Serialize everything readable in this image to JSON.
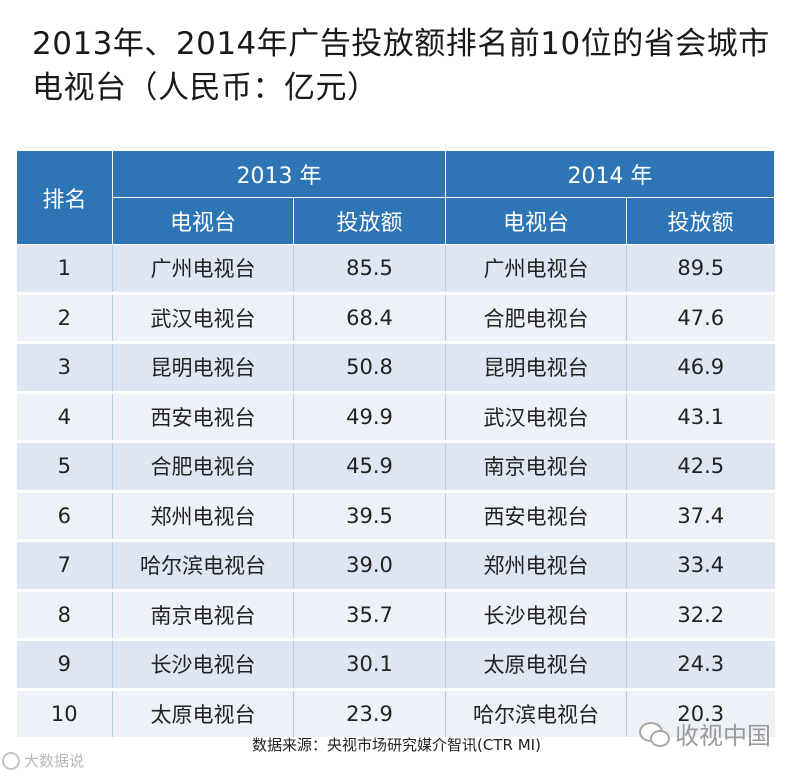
{
  "title": "2013年、2014年广告投放额排名前10位的省会城市电视台（人民币：亿元）",
  "table": {
    "rank_header": "排名",
    "year_headers": [
      "2013 年",
      "2014 年"
    ],
    "sub_headers": [
      "电视台",
      "投放额",
      "电视台",
      "投放额"
    ],
    "rows": [
      {
        "rank": "1",
        "s2013": "广州电视台",
        "v2013": "85.5",
        "s2014": "广州电视台",
        "v2014": "89.5"
      },
      {
        "rank": "2",
        "s2013": "武汉电视台",
        "v2013": "68.4",
        "s2014": "合肥电视台",
        "v2014": "47.6"
      },
      {
        "rank": "3",
        "s2013": "昆明电视台",
        "v2013": "50.8",
        "s2014": "昆明电视台",
        "v2014": "46.9"
      },
      {
        "rank": "4",
        "s2013": "西安电视台",
        "v2013": "49.9",
        "s2014": "武汉电视台",
        "v2014": "43.1"
      },
      {
        "rank": "5",
        "s2013": "合肥电视台",
        "v2013": "45.9",
        "s2014": "南京电视台",
        "v2014": "42.5"
      },
      {
        "rank": "6",
        "s2013": "郑州电视台",
        "v2013": "39.5",
        "s2014": "西安电视台",
        "v2014": "37.4"
      },
      {
        "rank": "7",
        "s2013": "哈尔滨电视台",
        "v2013": "39.0",
        "s2014": "郑州电视台",
        "v2014": "33.4"
      },
      {
        "rank": "8",
        "s2013": "南京电视台",
        "v2013": "35.7",
        "s2014": "长沙电视台",
        "v2014": "32.2"
      },
      {
        "rank": "9",
        "s2013": "长沙电视台",
        "v2013": "30.1",
        "s2014": "太原电视台",
        "v2014": "24.3"
      },
      {
        "rank": "10",
        "s2013": "太原电视台",
        "v2013": "23.9",
        "s2014": "哈尔滨电视台",
        "v2014": "20.3"
      }
    ]
  },
  "source": "数据来源：央视市场研究媒介智讯(CTR MI)",
  "watermark_right": "收视中国",
  "watermark_left": "大数据说",
  "colors": {
    "header_bg": "#2e75b6",
    "row_odd": "#dde6f2",
    "row_even": "#eef2f8"
  }
}
